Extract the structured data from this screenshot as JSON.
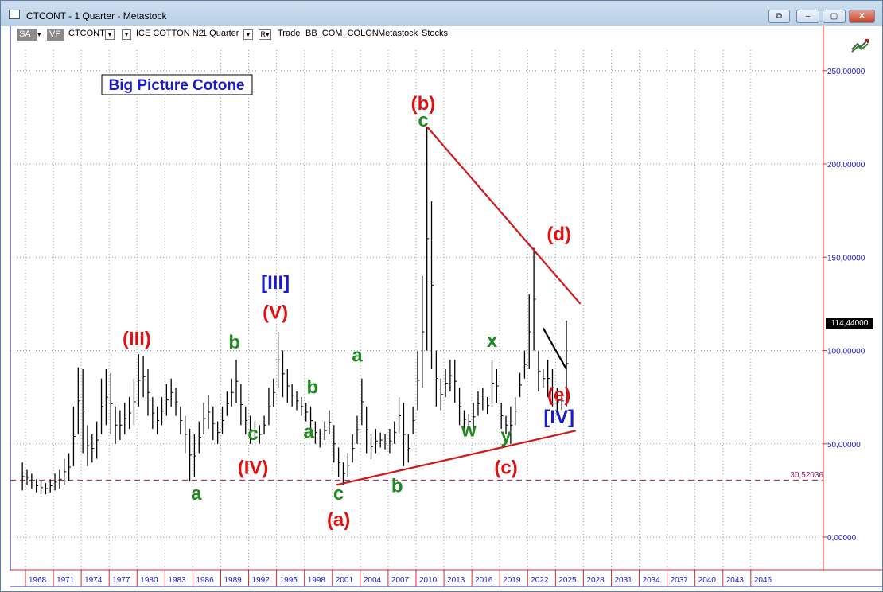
{
  "window": {
    "title": "CTCONT - 1 Quarter - Metastock",
    "buttons": {
      "restore_doc": "⧉",
      "minimize": "–",
      "maximize": "▢",
      "close": "✕"
    }
  },
  "toolbar": {
    "sa_label": "SA",
    "vp_label": "VP",
    "symbol": "CTCONT",
    "security_name": "ICE COTTON N2",
    "periodicity": "1 Quarter",
    "r_label": "R",
    "template": "Trade",
    "indicator": "BB_COM_COLON",
    "source": "Metastock",
    "category": "Stocks"
  },
  "chart_data": {
    "type": "bar",
    "title": "Big Picture Cotone",
    "x_axis_labels": [
      "1968",
      "1971",
      "1974",
      "1977",
      "1980",
      "1983",
      "1986",
      "1989",
      "1992",
      "1995",
      "1998",
      "2001",
      "2004",
      "2007",
      "2010",
      "2013",
      "2016",
      "2019",
      "2022",
      "2025",
      "2028",
      "2031",
      "2034",
      "2037",
      "2040",
      "2043",
      "2046"
    ],
    "y_ticks": [
      0,
      50,
      100,
      150,
      200,
      250
    ],
    "y_tick_labels": [
      "0,00000",
      "50,00000",
      "100,00000",
      "150,00000",
      "200,00000",
      "250,00000"
    ],
    "ylim": [
      -18,
      272
    ],
    "last_price_label": "114,44000",
    "last_price": 114.44,
    "support_level": 30.52036,
    "support_label": "30,52036",
    "series": [
      {
        "values": [
          [
            1967.5,
            25,
            40
          ],
          [
            1968.0,
            28,
            36
          ],
          [
            1968.5,
            26,
            34
          ],
          [
            1969.0,
            24,
            31
          ],
          [
            1969.5,
            23,
            30
          ],
          [
            1970.0,
            23,
            29
          ],
          [
            1970.5,
            24,
            31
          ],
          [
            1971.0,
            25,
            34
          ],
          [
            1971.5,
            26,
            36
          ],
          [
            1972.0,
            28,
            42
          ],
          [
            1972.5,
            30,
            45
          ],
          [
            1973.0,
            38,
            70
          ],
          [
            1973.5,
            55,
            91
          ],
          [
            1974.0,
            45,
            90
          ],
          [
            1974.5,
            38,
            60
          ],
          [
            1975.0,
            40,
            55
          ],
          [
            1975.5,
            42,
            62
          ],
          [
            1976.0,
            55,
            85
          ],
          [
            1976.5,
            60,
            90
          ],
          [
            1977.0,
            55,
            88
          ],
          [
            1977.5,
            50,
            70
          ],
          [
            1978.0,
            52,
            68
          ],
          [
            1978.5,
            55,
            72
          ],
          [
            1979.0,
            58,
            75
          ],
          [
            1979.5,
            60,
            85
          ],
          [
            1980.0,
            70,
            98
          ],
          [
            1980.5,
            75,
            97
          ],
          [
            1981.0,
            65,
            90
          ],
          [
            1981.5,
            58,
            75
          ],
          [
            1982.0,
            55,
            70
          ],
          [
            1982.5,
            60,
            75
          ],
          [
            1983.0,
            65,
            82
          ],
          [
            1983.5,
            70,
            85
          ],
          [
            1984.0,
            65,
            80
          ],
          [
            1984.5,
            55,
            70
          ],
          [
            1985.0,
            45,
            65
          ],
          [
            1985.5,
            30,
            58
          ],
          [
            1986.0,
            32,
            55
          ],
          [
            1986.5,
            45,
            62
          ],
          [
            1987.0,
            55,
            72
          ],
          [
            1987.5,
            58,
            76
          ],
          [
            1988.0,
            52,
            70
          ],
          [
            1988.5,
            50,
            62
          ],
          [
            1989.0,
            55,
            70
          ],
          [
            1989.5,
            65,
            78
          ],
          [
            1990.0,
            70,
            85
          ],
          [
            1990.5,
            72,
            95
          ],
          [
            1991.0,
            60,
            82
          ],
          [
            1991.5,
            55,
            70
          ],
          [
            1992.0,
            50,
            65
          ],
          [
            1992.5,
            52,
            62
          ],
          [
            1993.0,
            50,
            60
          ],
          [
            1993.5,
            55,
            65
          ],
          [
            1994.0,
            60,
            80
          ],
          [
            1994.5,
            70,
            85
          ],
          [
            1995.0,
            80,
            110
          ],
          [
            1995.5,
            75,
            100
          ],
          [
            1996.0,
            72,
            90
          ],
          [
            1996.5,
            70,
            82
          ],
          [
            1997.0,
            68,
            78
          ],
          [
            1997.5,
            65,
            75
          ],
          [
            1998.0,
            62,
            72
          ],
          [
            1998.5,
            55,
            70
          ],
          [
            1999.0,
            50,
            62
          ],
          [
            1999.5,
            48,
            58
          ],
          [
            2000.0,
            52,
            62
          ],
          [
            2000.5,
            55,
            68
          ],
          [
            2001.0,
            40,
            60
          ],
          [
            2001.5,
            32,
            48
          ],
          [
            2002.0,
            28,
            40
          ],
          [
            2002.5,
            32,
            45
          ],
          [
            2003.0,
            40,
            55
          ],
          [
            2003.5,
            50,
            65
          ],
          [
            2004.0,
            60,
            85
          ],
          [
            2004.5,
            45,
            70
          ],
          [
            2005.0,
            42,
            55
          ],
          [
            2005.5,
            45,
            58
          ],
          [
            2006.0,
            48,
            56
          ],
          [
            2006.5,
            47,
            55
          ],
          [
            2007.0,
            45,
            58
          ],
          [
            2007.5,
            50,
            62
          ],
          [
            2008.0,
            55,
            75
          ],
          [
            2008.5,
            38,
            72
          ],
          [
            2009.0,
            40,
            55
          ],
          [
            2009.5,
            55,
            70
          ],
          [
            2010.0,
            68,
            100
          ],
          [
            2010.5,
            80,
            140
          ],
          [
            2011.0,
            100,
            220
          ],
          [
            2011.5,
            90,
            180
          ],
          [
            2012.0,
            70,
            100
          ],
          [
            2012.5,
            68,
            85
          ],
          [
            2013.0,
            75,
            90
          ],
          [
            2013.5,
            78,
            95
          ],
          [
            2014.0,
            72,
            95
          ],
          [
            2014.5,
            60,
            80
          ],
          [
            2015.0,
            58,
            68
          ],
          [
            2015.5,
            58,
            66
          ],
          [
            2016.0,
            57,
            72
          ],
          [
            2016.5,
            65,
            78
          ],
          [
            2017.0,
            68,
            80
          ],
          [
            2017.5,
            66,
            75
          ],
          [
            2018.0,
            70,
            95
          ],
          [
            2018.5,
            72,
            90
          ],
          [
            2019.0,
            58,
            72
          ],
          [
            2019.5,
            55,
            65
          ],
          [
            2020.0,
            50,
            70
          ],
          [
            2020.5,
            60,
            75
          ],
          [
            2021.0,
            75,
            88
          ],
          [
            2021.5,
            85,
            100
          ],
          [
            2022.0,
            90,
            130
          ],
          [
            2022.5,
            100,
            155
          ],
          [
            2023.0,
            78,
            100
          ],
          [
            2023.5,
            80,
            90
          ],
          [
            2024.0,
            75,
            95
          ],
          [
            2024.5,
            70,
            90
          ],
          [
            2025.0,
            65,
            80
          ],
          [
            2025.5,
            68,
            78
          ],
          [
            2026.0,
            70,
            116
          ]
        ]
      }
    ],
    "annotations": [
      {
        "text": "(b)",
        "color": "red",
        "x": 2010.6,
        "y": 229
      },
      {
        "text": "c",
        "color": "green",
        "x": 2010.6,
        "y": 220
      },
      {
        "text": "(d)",
        "color": "red",
        "x": 2025.2,
        "y": 159
      },
      {
        "text": "[III]",
        "color": "blue",
        "x": 1994.7,
        "y": 133
      },
      {
        "text": "(V)",
        "color": "red",
        "x": 1994.7,
        "y": 117
      },
      {
        "text": "(III)",
        "color": "red",
        "x": 1979.8,
        "y": 103
      },
      {
        "text": "x",
        "color": "green",
        "x": 2018.0,
        "y": 102
      },
      {
        "text": "b",
        "color": "green",
        "x": 1990.3,
        "y": 101
      },
      {
        "text": "a",
        "color": "green",
        "x": 2003.5,
        "y": 94
      },
      {
        "text": "b",
        "color": "green",
        "x": 1998.7,
        "y": 77
      },
      {
        "text": "(e)",
        "color": "red",
        "x": 2025.2,
        "y": 73
      },
      {
        "text": "[IV]",
        "color": "blue",
        "x": 2025.2,
        "y": 61
      },
      {
        "text": "a",
        "color": "green",
        "x": 1998.3,
        "y": 53
      },
      {
        "text": "c",
        "color": "green",
        "x": 1992.3,
        "y": 52
      },
      {
        "text": "w",
        "color": "green",
        "x": 2015.5,
        "y": 54
      },
      {
        "text": "y",
        "color": "green",
        "x": 2019.5,
        "y": 51
      },
      {
        "text": "(IV)",
        "color": "red",
        "x": 1992.3,
        "y": 34
      },
      {
        "text": "(c)",
        "color": "red",
        "x": 2019.5,
        "y": 34
      },
      {
        "text": "b",
        "color": "green",
        "x": 2007.8,
        "y": 24
      },
      {
        "text": "a",
        "color": "green",
        "x": 1986.2,
        "y": 20
      },
      {
        "text": "c",
        "color": "green",
        "x": 2001.5,
        "y": 20
      },
      {
        "text": "(a)",
        "color": "red",
        "x": 2001.5,
        "y": 6
      }
    ],
    "trendlines": [
      {
        "color": "red",
        "points": [
          [
            2011.0,
            220
          ],
          [
            2027.5,
            125
          ]
        ]
      },
      {
        "color": "red",
        "points": [
          [
            2001.3,
            28
          ],
          [
            2027.0,
            57
          ]
        ]
      },
      {
        "color": "black",
        "points": [
          [
            2023.5,
            112
          ],
          [
            2026.0,
            90
          ]
        ]
      }
    ],
    "grid": true,
    "legend": "none"
  },
  "colors": {
    "frame": "#1f1f9f",
    "label_red": "#e01010",
    "label_green": "#1c8a1c",
    "label_blue": "#1a1acc",
    "trend_red": "#d21818",
    "support_dash": "#9b1a63",
    "axis_red": "#e02828",
    "bars": "#000000"
  }
}
